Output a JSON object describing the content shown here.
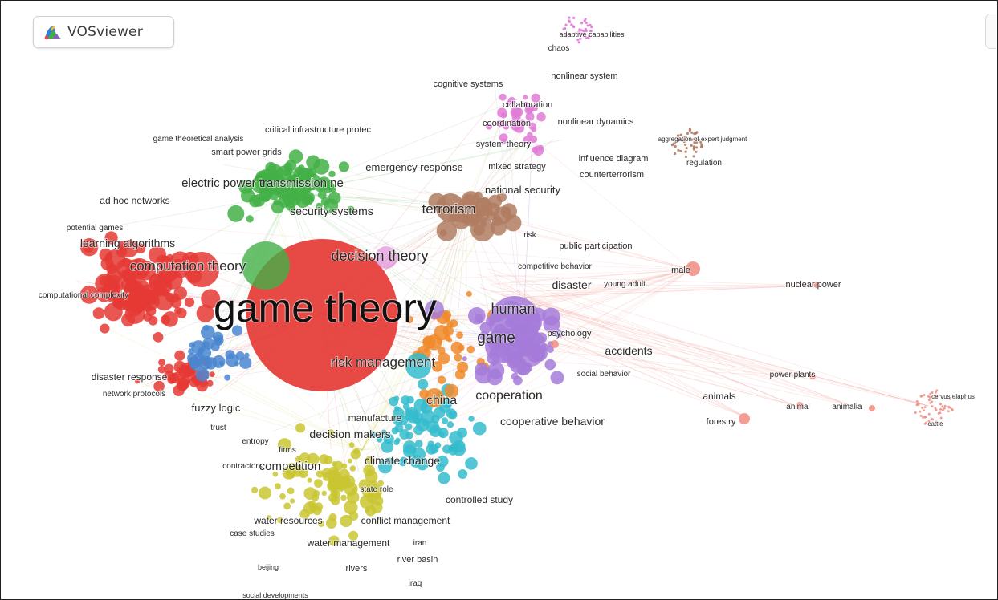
{
  "app": {
    "name": "VOSviewer",
    "logo_icon": "vosviewer-logo-icon",
    "handle_icon": "panel-handle-icon"
  },
  "cluster_colors": {
    "red": "#e53935",
    "green": "#43b047",
    "blue": "#4a86d0",
    "yellow": "#c9c531",
    "purple": "#a57bd9",
    "cyan": "#34bccc",
    "orange": "#f08a2a",
    "brown": "#b07c62",
    "pink": "#e07ad6",
    "peach": "#f2938a"
  },
  "labels": [
    {
      "text": "game theory",
      "cluster": "red"
    },
    {
      "text": "risk management",
      "cluster": "red"
    },
    {
      "text": "decision theory",
      "cluster": "red"
    },
    {
      "text": "computation theory",
      "cluster": "red"
    },
    {
      "text": "learning algorithms",
      "cluster": "red"
    },
    {
      "text": "ad hoc networks",
      "cluster": "red"
    },
    {
      "text": "potential games",
      "cluster": "red"
    },
    {
      "text": "computational complexity",
      "cluster": "red"
    },
    {
      "text": "disaster response",
      "cluster": "red"
    },
    {
      "text": "network protocols",
      "cluster": "red"
    },
    {
      "text": "game theoretical analysis",
      "cluster": "red"
    },
    {
      "text": "critical infrastructure protec",
      "cluster": "green"
    },
    {
      "text": "smart power grids",
      "cluster": "green"
    },
    {
      "text": "electric power transmission ne",
      "cluster": "green"
    },
    {
      "text": "security systems",
      "cluster": "green"
    },
    {
      "text": "emergency response",
      "cluster": "green"
    },
    {
      "text": "fuzzy logic",
      "cluster": "blue"
    },
    {
      "text": "trust",
      "cluster": "blue"
    },
    {
      "text": "entropy",
      "cluster": "blue"
    },
    {
      "text": "firms",
      "cluster": "yellow"
    },
    {
      "text": "contractors",
      "cluster": "yellow"
    },
    {
      "text": "competition",
      "cluster": "yellow"
    },
    {
      "text": "decision makers",
      "cluster": "yellow"
    },
    {
      "text": "manufacture",
      "cluster": "yellow"
    },
    {
      "text": "state role",
      "cluster": "yellow"
    },
    {
      "text": "water resources",
      "cluster": "yellow"
    },
    {
      "text": "conflict management",
      "cluster": "yellow"
    },
    {
      "text": "water management",
      "cluster": "yellow"
    },
    {
      "text": "iran",
      "cluster": "yellow"
    },
    {
      "text": "river basin",
      "cluster": "yellow"
    },
    {
      "text": "rivers",
      "cluster": "yellow"
    },
    {
      "text": "iraq",
      "cluster": "yellow"
    },
    {
      "text": "case studies",
      "cluster": "yellow"
    },
    {
      "text": "beijing",
      "cluster": "yellow"
    },
    {
      "text": "social developments",
      "cluster": "yellow"
    },
    {
      "text": "climate change",
      "cluster": "cyan"
    },
    {
      "text": "controlled study",
      "cluster": "cyan"
    },
    {
      "text": "china",
      "cluster": "orange"
    },
    {
      "text": "human",
      "cluster": "purple"
    },
    {
      "text": "game",
      "cluster": "purple"
    },
    {
      "text": "cooperation",
      "cluster": "purple"
    },
    {
      "text": "cooperative behavior",
      "cluster": "purple"
    },
    {
      "text": "psychology",
      "cluster": "purple"
    },
    {
      "text": "social behavior",
      "cluster": "purple"
    },
    {
      "text": "disaster",
      "cluster": "purple"
    },
    {
      "text": "young adult",
      "cluster": "purple"
    },
    {
      "text": "competitive behavior",
      "cluster": "purple"
    },
    {
      "text": "public participation",
      "cluster": "purple"
    },
    {
      "text": "accidents",
      "cluster": "purple"
    },
    {
      "text": "terrorism",
      "cluster": "brown"
    },
    {
      "text": "risk",
      "cluster": "brown"
    },
    {
      "text": "national security",
      "cluster": "brown"
    },
    {
      "text": "influence diagram",
      "cluster": "brown"
    },
    {
      "text": "counterterrorism",
      "cluster": "brown"
    },
    {
      "text": "aggregation of expert judgment",
      "cluster": "brown"
    },
    {
      "text": "regulation",
      "cluster": "brown"
    },
    {
      "text": "mixed strategy",
      "cluster": "brown"
    },
    {
      "text": "system theory",
      "cluster": "pink"
    },
    {
      "text": "cognitive systems",
      "cluster": "pink"
    },
    {
      "text": "collaboration",
      "cluster": "pink"
    },
    {
      "text": "coordination",
      "cluster": "pink"
    },
    {
      "text": "nonlinear dynamics",
      "cluster": "pink"
    },
    {
      "text": "nonlinear system",
      "cluster": "pink"
    },
    {
      "text": "chaos",
      "cluster": "pink"
    },
    {
      "text": "adaptive capabilities",
      "cluster": "pink"
    },
    {
      "text": "male",
      "cluster": "peach"
    },
    {
      "text": "nuclear power",
      "cluster": "peach"
    },
    {
      "text": "power plants",
      "cluster": "peach"
    },
    {
      "text": "animals",
      "cluster": "peach"
    },
    {
      "text": "forestry",
      "cluster": "peach"
    },
    {
      "text": "animal",
      "cluster": "peach"
    },
    {
      "text": "animalia",
      "cluster": "peach"
    },
    {
      "text": "cervus elaphus",
      "cluster": "peach"
    },
    {
      "text": "cattle",
      "cluster": "peach"
    }
  ]
}
